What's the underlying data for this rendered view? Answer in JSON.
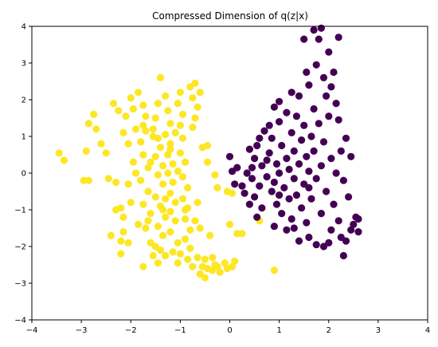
{
  "chart_data": {
    "type": "scatter",
    "title": "Compressed Dimension of q(z|x)",
    "xlabel": "",
    "ylabel": "",
    "xlim": [
      -4,
      4
    ],
    "ylim": [
      -4,
      4
    ],
    "xticks": [
      -4,
      -3,
      -2,
      -1,
      0,
      1,
      2,
      3,
      4
    ],
    "yticks": [
      -4,
      -3,
      -2,
      -1,
      0,
      1,
      2,
      3,
      4
    ],
    "grid": false,
    "legend": false,
    "series": [
      {
        "color": "#fde725",
        "points": [
          [
            -3.45,
            0.55
          ],
          [
            -3.35,
            0.35
          ],
          [
            -2.95,
            -0.2
          ],
          [
            -2.85,
            -0.2
          ],
          [
            -2.75,
            1.6
          ],
          [
            -2.85,
            1.35
          ],
          [
            -2.9,
            0.6
          ],
          [
            -2.6,
            0.8
          ],
          [
            -2.7,
            1.2
          ],
          [
            -2.5,
            0.55
          ],
          [
            -2.45,
            -0.15
          ],
          [
            -2.3,
            -0.25
          ],
          [
            -2.3,
            -1.0
          ],
          [
            -2.2,
            -0.95
          ],
          [
            -2.35,
            1.9
          ],
          [
            -2.25,
            1.7
          ],
          [
            -2.1,
            1.55
          ],
          [
            -2.15,
            1.1
          ],
          [
            -2.0,
            2.05
          ],
          [
            -1.95,
            1.75
          ],
          [
            -1.9,
            1.2
          ],
          [
            -2.05,
            0.8
          ],
          [
            -1.95,
            0.3
          ],
          [
            -2.05,
            -0.3
          ],
          [
            -2.0,
            -0.8
          ],
          [
            -2.15,
            -1.2
          ],
          [
            -2.05,
            -1.9
          ],
          [
            -2.2,
            -2.2
          ],
          [
            -2.4,
            -1.7
          ],
          [
            -2.15,
            -1.6
          ],
          [
            -1.85,
            2.2
          ],
          [
            -1.75,
            1.85
          ],
          [
            -1.7,
            1.55
          ],
          [
            -1.7,
            1.15
          ],
          [
            -1.8,
            0.85
          ],
          [
            -1.75,
            0.5
          ],
          [
            -1.65,
            0.15
          ],
          [
            -1.8,
            -0.2
          ],
          [
            -1.65,
            -0.5
          ],
          [
            -1.75,
            -0.85
          ],
          [
            -1.6,
            -1.1
          ],
          [
            -1.7,
            -1.5
          ],
          [
            -1.6,
            -1.9
          ],
          [
            -1.75,
            -2.55
          ],
          [
            -1.55,
            -2.25
          ],
          [
            -1.5,
            1.5
          ],
          [
            -1.45,
            1.9
          ],
          [
            -1.55,
            1.2
          ],
          [
            -1.45,
            0.95
          ],
          [
            -1.4,
            0.7
          ],
          [
            -1.5,
            0.45
          ],
          [
            -1.35,
            0.2
          ],
          [
            -1.45,
            -0.05
          ],
          [
            -1.35,
            -0.3
          ],
          [
            -1.5,
            -0.65
          ],
          [
            -1.4,
            -0.9
          ],
          [
            -1.3,
            -1.2
          ],
          [
            -1.45,
            -1.45
          ],
          [
            -1.35,
            -1.7
          ],
          [
            -1.5,
            -2.0
          ],
          [
            -1.3,
            -2.25
          ],
          [
            -1.45,
            -2.45
          ],
          [
            -1.4,
            2.6
          ],
          [
            -1.3,
            2.1
          ],
          [
            -1.25,
            1.7
          ],
          [
            -1.2,
            1.35
          ],
          [
            -1.3,
            1.05
          ],
          [
            -1.2,
            0.8
          ],
          [
            -1.25,
            0.5
          ],
          [
            -1.15,
            0.25
          ],
          [
            -1.25,
            0.0
          ],
          [
            -1.15,
            -0.25
          ],
          [
            -1.2,
            -0.55
          ],
          [
            -1.1,
            -0.8
          ],
          [
            -1.2,
            -1.05
          ],
          [
            -1.1,
            -1.3
          ],
          [
            -1.2,
            -1.6
          ],
          [
            -1.05,
            -1.9
          ],
          [
            -1.15,
            -2.15
          ],
          [
            -1.05,
            -2.45
          ],
          [
            -1.0,
            2.2
          ],
          [
            -1.05,
            1.9
          ],
          [
            -0.95,
            1.6
          ],
          [
            -1.0,
            1.3
          ],
          [
            -0.95,
            0.95
          ],
          [
            -1.0,
            0.55
          ],
          [
            -0.9,
            0.3
          ],
          [
            -0.95,
            -0.1
          ],
          [
            -0.85,
            -0.4
          ],
          [
            -0.95,
            -0.7
          ],
          [
            -0.85,
            -0.95
          ],
          [
            -0.9,
            -1.25
          ],
          [
            -0.8,
            -1.55
          ],
          [
            -0.9,
            -1.8
          ],
          [
            -0.8,
            -2.05
          ],
          [
            -0.85,
            -2.35
          ],
          [
            -0.75,
            -2.55
          ],
          [
            -0.8,
            2.35
          ],
          [
            -0.7,
            2.45
          ],
          [
            -0.75,
            2.05
          ],
          [
            -0.65,
            1.8
          ],
          [
            -0.7,
            1.5
          ],
          [
            -0.6,
            2.2
          ],
          [
            -0.75,
            1.25
          ],
          [
            -0.7,
            -1.3
          ],
          [
            -0.6,
            -1.5
          ],
          [
            -0.65,
            -2.3
          ],
          [
            -0.55,
            -2.55
          ],
          [
            -0.6,
            -2.75
          ],
          [
            -0.5,
            -2.85
          ],
          [
            -0.45,
            -2.6
          ],
          [
            -0.55,
            0.7
          ],
          [
            -0.45,
            0.75
          ],
          [
            -0.45,
            0.3
          ],
          [
            -0.3,
            -0.05
          ],
          [
            -0.25,
            -0.4
          ],
          [
            -0.35,
            -2.3
          ],
          [
            -0.3,
            -2.5
          ],
          [
            -0.2,
            -2.7
          ],
          [
            -0.25,
            -2.55
          ],
          [
            -0.1,
            -2.45
          ],
          [
            -0.05,
            -2.6
          ],
          [
            0.05,
            -2.55
          ],
          [
            0.1,
            -2.4
          ],
          [
            0.05,
            -0.55
          ],
          [
            -0.05,
            -0.5
          ],
          [
            0.0,
            -1.4
          ],
          [
            0.15,
            -1.65
          ],
          [
            0.25,
            -1.65
          ],
          [
            0.6,
            -1.3
          ],
          [
            0.9,
            -2.65
          ],
          [
            -1.9,
            0.0
          ],
          [
            -1.6,
            0.3
          ],
          [
            -1.85,
            -1.4
          ],
          [
            -1.55,
            1.0
          ],
          [
            -1.3,
            -0.7
          ],
          [
            -1.05,
            0.05
          ],
          [
            -1.1,
            1.1
          ],
          [
            -0.9,
            -1.0
          ],
          [
            -1.65,
            -1.3
          ],
          [
            -1.4,
            -2.1
          ],
          [
            -1.2,
            0.65
          ],
          [
            -2.2,
            -1.85
          ],
          [
            -1.75,
            1.3
          ],
          [
            -1.35,
            -1.0
          ],
          [
            -1.0,
            -2.2
          ],
          [
            -0.5,
            -2.35
          ],
          [
            -0.65,
            -0.8
          ],
          [
            -0.4,
            -1.7
          ],
          [
            -0.35,
            -2.65
          ]
        ]
      },
      {
        "color": "#440154",
        "points": [
          [
            0.0,
            0.45
          ],
          [
            0.05,
            0.05
          ],
          [
            0.1,
            -0.3
          ],
          [
            0.15,
            0.15
          ],
          [
            0.25,
            -0.35
          ],
          [
            0.3,
            -0.55
          ],
          [
            0.35,
            0.0
          ],
          [
            0.4,
            0.65
          ],
          [
            0.45,
            -0.15
          ],
          [
            0.4,
            -0.85
          ],
          [
            0.5,
            -0.65
          ],
          [
            0.5,
            0.4
          ],
          [
            0.55,
            0.75
          ],
          [
            0.6,
            -0.35
          ],
          [
            0.65,
            -0.95
          ],
          [
            0.65,
            0.2
          ],
          [
            0.7,
            1.15
          ],
          [
            0.75,
            -0.1
          ],
          [
            0.8,
            0.55
          ],
          [
            0.85,
            -0.5
          ],
          [
            0.85,
            0.95
          ],
          [
            0.9,
            -0.25
          ],
          [
            0.9,
            1.8
          ],
          [
            0.95,
            0.25
          ],
          [
            0.95,
            -0.85
          ],
          [
            1.0,
            1.4
          ],
          [
            1.0,
            0.0
          ],
          [
            1.05,
            -1.1
          ],
          [
            1.05,
            0.75
          ],
          [
            1.1,
            -0.4
          ],
          [
            1.15,
            1.65
          ],
          [
            1.15,
            0.4
          ],
          [
            1.2,
            -0.7
          ],
          [
            1.2,
            0.1
          ],
          [
            1.25,
            1.1
          ],
          [
            1.25,
            -1.25
          ],
          [
            1.3,
            0.6
          ],
          [
            1.3,
            -0.15
          ],
          [
            1.35,
            1.55
          ],
          [
            1.35,
            -0.6
          ],
          [
            1.4,
            0.25
          ],
          [
            1.4,
            2.1
          ],
          [
            1.45,
            -0.95
          ],
          [
            1.45,
            0.9
          ],
          [
            1.5,
            -0.3
          ],
          [
            1.5,
            1.3
          ],
          [
            1.55,
            0.45
          ],
          [
            1.55,
            -1.35
          ],
          [
            1.6,
            2.4
          ],
          [
            1.6,
            0.05
          ],
          [
            1.65,
            1.0
          ],
          [
            1.65,
            -0.7
          ],
          [
            1.7,
            1.75
          ],
          [
            1.7,
            0.6
          ],
          [
            1.75,
            2.95
          ],
          [
            1.75,
            -0.15
          ],
          [
            1.8,
            3.65
          ],
          [
            1.8,
            1.35
          ],
          [
            1.85,
            0.2
          ],
          [
            1.85,
            -1.1
          ],
          [
            1.9,
            2.6
          ],
          [
            1.9,
            0.85
          ],
          [
            1.95,
            -0.5
          ],
          [
            1.95,
            2.1
          ],
          [
            2.0,
            3.3
          ],
          [
            2.0,
            1.55
          ],
          [
            2.05,
            -1.55
          ],
          [
            2.05,
            0.4
          ],
          [
            2.1,
            2.75
          ],
          [
            2.1,
            -0.85
          ],
          [
            2.15,
            1.9
          ],
          [
            2.15,
            0.0
          ],
          [
            2.2,
            3.7
          ],
          [
            2.2,
            -1.3
          ],
          [
            2.25,
            0.6
          ],
          [
            2.3,
            -0.2
          ],
          [
            2.35,
            -1.85
          ],
          [
            2.35,
            0.95
          ],
          [
            2.4,
            -0.65
          ],
          [
            2.45,
            0.45
          ],
          [
            2.5,
            -1.4
          ],
          [
            2.55,
            -1.2
          ],
          [
            2.6,
            -1.6
          ],
          [
            2.6,
            -1.25
          ],
          [
            2.3,
            -2.25
          ],
          [
            1.9,
            -2.0
          ],
          [
            1.6,
            -1.75
          ],
          [
            1.3,
            -1.5
          ],
          [
            0.9,
            -1.45
          ],
          [
            1.7,
            3.9
          ],
          [
            1.85,
            3.95
          ],
          [
            1.5,
            3.65
          ],
          [
            2.05,
            2.35
          ],
          [
            1.55,
            2.75
          ],
          [
            1.25,
            2.2
          ],
          [
            1.0,
            1.95
          ],
          [
            0.75,
            0.35
          ],
          [
            0.55,
            -1.2
          ],
          [
            1.15,
            -1.55
          ],
          [
            1.4,
            -1.85
          ],
          [
            2.25,
            -1.75
          ],
          [
            2.45,
            -1.55
          ],
          [
            2.0,
            -1.9
          ],
          [
            1.75,
            -1.95
          ],
          [
            0.45,
            0.15
          ],
          [
            0.6,
            0.95
          ],
          [
            0.8,
            1.3
          ],
          [
            1.0,
            -0.6
          ],
          [
            1.6,
            -0.4
          ],
          [
            2.2,
            1.45
          ]
        ]
      }
    ]
  }
}
